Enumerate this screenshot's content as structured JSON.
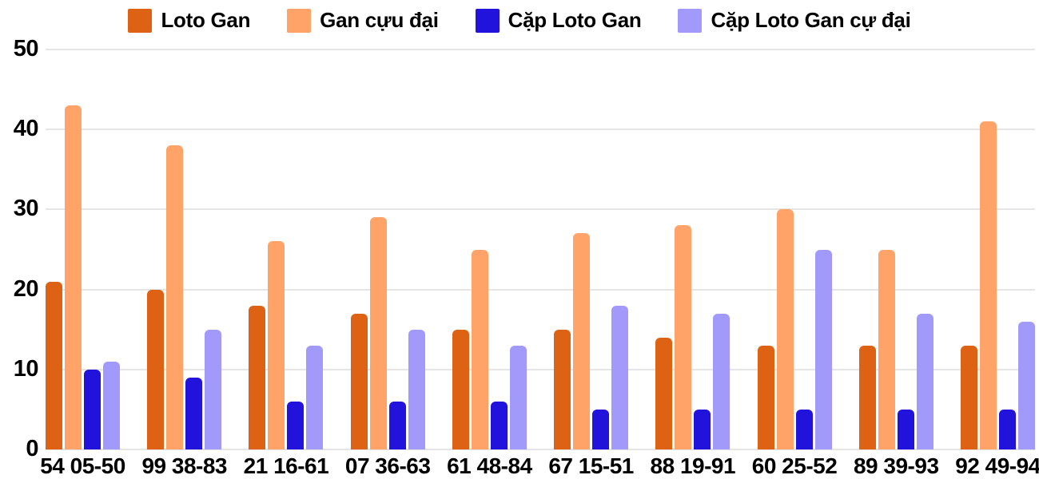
{
  "chart_data": {
    "type": "bar",
    "title": "",
    "categories": [
      "54 05-50",
      "99 38-83",
      "21 16-61",
      "07 36-63",
      "61 48-84",
      "67 15-51",
      "88 19-91",
      "60 25-52",
      "89 39-93",
      "92 49-94"
    ],
    "series": [
      {
        "name": "Loto Gan",
        "color": "#DD6213",
        "values": [
          21,
          20,
          18,
          17,
          15,
          15,
          14,
          13,
          13,
          13
        ]
      },
      {
        "name": "Gan cựu đại",
        "color": "#FFA369",
        "values": [
          43,
          38,
          26,
          29,
          25,
          27,
          28,
          30,
          25,
          41
        ]
      },
      {
        "name": "Cặp Loto Gan",
        "color": "#2213DC",
        "values": [
          10,
          9,
          6,
          6,
          6,
          5,
          5,
          5,
          5,
          5
        ]
      },
      {
        "name": "Cặp Loto Gan cự đại",
        "color": "#A29AFB",
        "values": [
          11,
          15,
          13,
          15,
          13,
          18,
          17,
          25,
          17,
          16
        ]
      }
    ],
    "xlabel": "",
    "ylabel": "",
    "ylim": [
      0,
      50
    ],
    "yticks": [
      0,
      10,
      20,
      30,
      40,
      50
    ],
    "legend_position": "top",
    "grid": true,
    "colors": {
      "background": "#ffffff",
      "gridline": "#e5e5e5",
      "text": "#000000"
    }
  }
}
